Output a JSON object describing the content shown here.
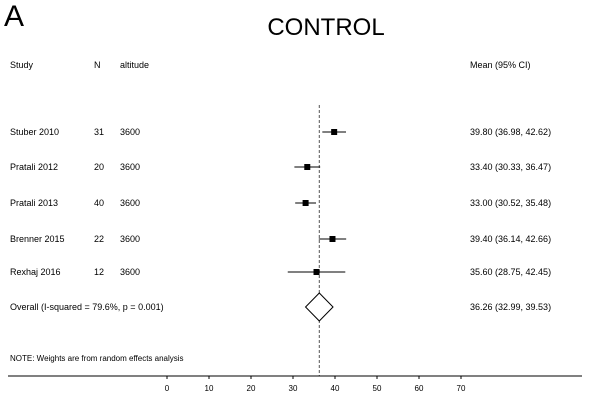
{
  "panel_letter": "A",
  "title": "CONTROL",
  "headers": {
    "study": "Study",
    "n": "N",
    "altitude": "altitude",
    "estimate": "Mean (95% CI)"
  },
  "note": "NOTE: Weights are from random effects analysis",
  "chart_data": {
    "type": "forest",
    "title": "CONTROL",
    "xlim": [
      0,
      70
    ],
    "x_ticks": [
      0,
      10,
      20,
      30,
      40,
      50,
      60,
      70
    ],
    "reference_line": 36.26,
    "rows": [
      {
        "study": "Stuber 2010",
        "n": "31",
        "altitude": "3600",
        "mean": 39.8,
        "lo": 36.98,
        "hi": 42.62,
        "label": "39.80 (36.98, 42.62)"
      },
      {
        "study": "Pratali 2012",
        "n": "20",
        "altitude": "3600",
        "mean": 33.4,
        "lo": 30.33,
        "hi": 36.47,
        "label": "33.40 (30.33, 36.47)"
      },
      {
        "study": "Pratali 2013",
        "n": "40",
        "altitude": "3600",
        "mean": 33.0,
        "lo": 30.52,
        "hi": 35.48,
        "label": "33.00 (30.52, 35.48)"
      },
      {
        "study": "Brenner 2015",
        "n": "22",
        "altitude": "3600",
        "mean": 39.4,
        "lo": 36.14,
        "hi": 42.66,
        "label": "39.40 (36.14, 42.66)"
      },
      {
        "study": "Rexhaj 2016",
        "n": "12",
        "altitude": "3600",
        "mean": 35.6,
        "lo": 28.75,
        "hi": 42.45,
        "label": "35.60 (28.75, 42.45)"
      }
    ],
    "overall": {
      "label_text": "Overall  (I-squared = 79.6%, p = 0.001)",
      "mean": 36.26,
      "lo": 32.99,
      "hi": 39.53,
      "label": "36.26 (32.99, 39.53)"
    }
  }
}
